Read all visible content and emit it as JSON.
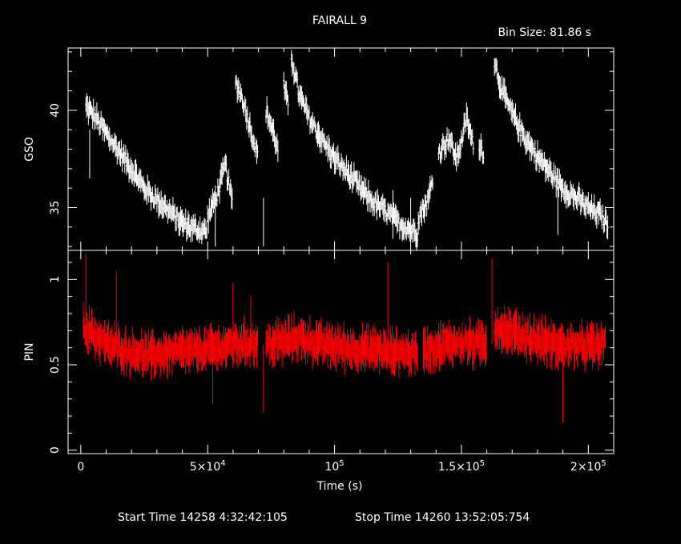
{
  "title": "FAIRALL 9",
  "bin_size": "Bin Size: 81.86 s",
  "footer": {
    "start": "Start Time 14258  4:32:42:105",
    "stop": "Stop Time 14260 13:52:05:754"
  },
  "colors": {
    "background": "#000000",
    "axes": "#ffffff",
    "gso": "#ffffff",
    "pin": "#ff0000"
  },
  "chart_data": [
    {
      "type": "line",
      "ylabel": "GSO",
      "xlim": [
        -5000,
        210000
      ],
      "ylim": [
        32.8,
        43.2
      ],
      "yticks": [
        {
          "v": 35,
          "label": "35"
        },
        {
          "v": 40,
          "label": "40"
        }
      ],
      "series": [
        {
          "color": "#ffffff",
          "segments": [
            [
              [
                2000,
                40.2
              ],
              [
                6000,
                39.6
              ],
              [
                10000,
                38.8
              ],
              [
                15000,
                37.9
              ],
              [
                20000,
                37.0
              ],
              [
                25000,
                36.0
              ],
              [
                30000,
                35.4
              ],
              [
                35000,
                34.8
              ],
              [
                40000,
                34.2
              ],
              [
                45000,
                33.9
              ],
              [
                50000,
                33.8
              ]
            ],
            [
              [
                50000,
                34.5
              ],
              [
                54000,
                35.8
              ],
              [
                57000,
                37.2
              ],
              [
                60000,
                35.0
              ]
            ],
            [
              [
                61000,
                41.5
              ],
              [
                64000,
                40.5
              ],
              [
                66000,
                39.5
              ],
              [
                68000,
                38.5
              ],
              [
                70000,
                37.5
              ]
            ],
            [
              [
                73000,
                40.0
              ],
              [
                76000,
                38.8
              ],
              [
                78000,
                37.8
              ]
            ],
            [
              [
                80000,
                41.2
              ],
              [
                82000,
                40.0
              ]
            ],
            [
              [
                83000,
                42.8
              ],
              [
                86000,
                40.8
              ],
              [
                90000,
                39.6
              ],
              [
                95000,
                38.5
              ],
              [
                100000,
                37.5
              ],
              [
                105000,
                36.8
              ],
              [
                110000,
                36.0
              ],
              [
                115000,
                35.3
              ],
              [
                120000,
                34.8
              ],
              [
                125000,
                34.2
              ],
              [
                130000,
                33.9
              ],
              [
                133000,
                33.6
              ]
            ],
            [
              [
                133000,
                34.5
              ],
              [
                137000,
                35.4
              ],
              [
                139000,
                36.8
              ]
            ],
            [
              [
                141000,
                37.8
              ],
              [
                145000,
                38.6
              ],
              [
                148000,
                37.5
              ],
              [
                150000,
                38.4
              ],
              [
                152000,
                39.6
              ],
              [
                155000,
                38.0
              ]
            ],
            [
              [
                157000,
                38.3
              ],
              [
                159000,
                37.7
              ]
            ],
            [
              [
                163000,
                42.5
              ],
              [
                166000,
                41.0
              ],
              [
                170000,
                39.8
              ],
              [
                175000,
                38.6
              ],
              [
                180000,
                37.6
              ],
              [
                185000,
                36.8
              ],
              [
                190000,
                36.0
              ],
              [
                195000,
                35.5
              ],
              [
                200000,
                35.0
              ],
              [
                205000,
                34.6
              ],
              [
                208000,
                34.1
              ]
            ]
          ],
          "spikes": [
            [
              3500,
              36.5
            ],
            [
              53000,
              33.0
            ],
            [
              72000,
              33.0
            ],
            [
              123000,
              33.4
            ],
            [
              130000,
              33.0
            ],
            [
              188000,
              33.6
            ]
          ]
        }
      ]
    },
    {
      "type": "line",
      "ylabel": "PIN",
      "xlim": [
        -5000,
        210000
      ],
      "ylim": [
        -0.02,
        1.17
      ],
      "yticks": [
        {
          "v": 0,
          "label": "0"
        },
        {
          "v": 0.5,
          "label": "0.5"
        },
        {
          "v": 1,
          "label": "1"
        }
      ],
      "xlabel": "Time (s)",
      "xticks": [
        {
          "v": 0,
          "label": "0"
        },
        {
          "v": 50000,
          "label": "5×10",
          "sup": "4"
        },
        {
          "v": 100000,
          "label": "10",
          "sup": "5"
        },
        {
          "v": 150000,
          "label": "1.5×10",
          "sup": "5"
        },
        {
          "v": 200000,
          "label": "2×10",
          "sup": "5"
        }
      ],
      "series": [
        {
          "color": "#ff0000",
          "segments": [
            [
              [
                1000,
                0.72
              ],
              [
                5000,
                0.68
              ],
              [
                10000,
                0.62
              ],
              [
                15000,
                0.6
              ],
              [
                20000,
                0.57
              ],
              [
                25000,
                0.56
              ],
              [
                30000,
                0.56
              ],
              [
                35000,
                0.57
              ],
              [
                40000,
                0.58
              ],
              [
                45000,
                0.58
              ],
              [
                50000,
                0.59
              ],
              [
                55000,
                0.6
              ],
              [
                60000,
                0.62
              ],
              [
                65000,
                0.63
              ],
              [
                70000,
                0.63
              ]
            ],
            [
              [
                73000,
                0.62
              ],
              [
                77000,
                0.63
              ],
              [
                82000,
                0.65
              ],
              [
                86000,
                0.66
              ],
              [
                90000,
                0.64
              ],
              [
                95000,
                0.62
              ],
              [
                100000,
                0.61
              ],
              [
                105000,
                0.6
              ],
              [
                110000,
                0.59
              ],
              [
                115000,
                0.59
              ],
              [
                120000,
                0.58
              ],
              [
                125000,
                0.58
              ],
              [
                130000,
                0.57
              ],
              [
                133000,
                0.57
              ]
            ],
            [
              [
                135000,
                0.59
              ],
              [
                140000,
                0.6
              ],
              [
                145000,
                0.62
              ],
              [
                150000,
                0.63
              ],
              [
                155000,
                0.62
              ],
              [
                160000,
                0.63
              ]
            ],
            [
              [
                163000,
                0.72
              ],
              [
                167000,
                0.7
              ],
              [
                172000,
                0.68
              ],
              [
                177000,
                0.66
              ],
              [
                182000,
                0.64
              ],
              [
                187000,
                0.62
              ],
              [
                192000,
                0.61
              ],
              [
                197000,
                0.61
              ],
              [
                202000,
                0.61
              ],
              [
                207000,
                0.62
              ]
            ]
          ],
          "spikes": [
            [
              2000,
              1.15
            ],
            [
              14000,
              1.05
            ],
            [
              60000,
              0.98
            ],
            [
              67000,
              0.9
            ],
            [
              121000,
              1.1
            ],
            [
              162000,
              1.12
            ],
            [
              190000,
              0.16
            ],
            [
              72000,
              0.22
            ],
            [
              52000,
              0.27
            ]
          ]
        }
      ]
    }
  ]
}
